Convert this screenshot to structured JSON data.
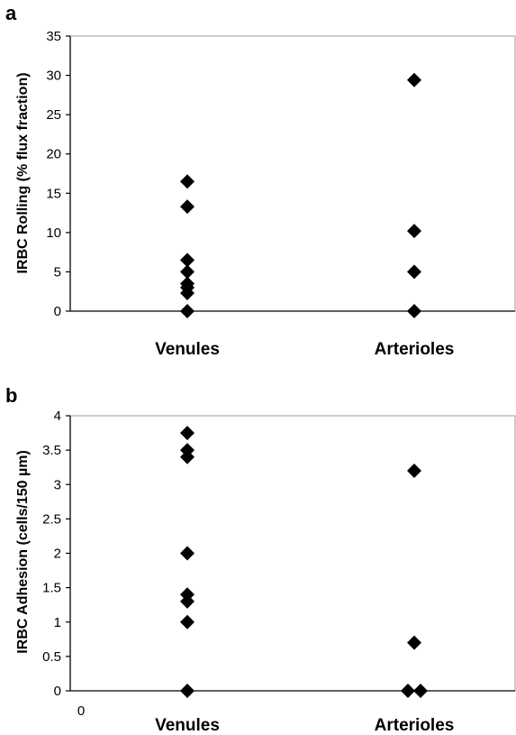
{
  "chart_data": [
    {
      "type": "scatter",
      "panel": "a",
      "ylabel": "IRBC Rolling (% flux fraction)",
      "categories": [
        "Venules",
        "Arterioles"
      ],
      "ylim": [
        0,
        35
      ],
      "yticks": [
        "0",
        "5",
        "10",
        "15",
        "20",
        "25",
        "30",
        "35"
      ],
      "xorigin_label": "",
      "series": [
        {
          "category": "Venules",
          "values": [
            16.5,
            13.3,
            6.5,
            5,
            3.5,
            3,
            2.3,
            0
          ]
        },
        {
          "category": "Arterioles",
          "values": [
            29.4,
            10.2,
            5,
            0
          ]
        }
      ]
    },
    {
      "type": "scatter",
      "panel": "b",
      "ylabel": "IRBC Adhesion (cells/150 µm)",
      "categories": [
        "Venules",
        "Arterioles"
      ],
      "ylim": [
        0,
        4
      ],
      "yticks": [
        "0",
        "0.5",
        "1",
        "1.5",
        "2",
        "2.5",
        "3",
        "3.5",
        "4"
      ],
      "xorigin_label": "0",
      "series": [
        {
          "category": "Venules",
          "values": [
            3.75,
            3.5,
            3.4,
            2,
            1.4,
            1.3,
            1,
            0
          ]
        },
        {
          "category": "Arterioles",
          "values": [
            3.2,
            0.7,
            0,
            0
          ]
        }
      ]
    }
  ]
}
